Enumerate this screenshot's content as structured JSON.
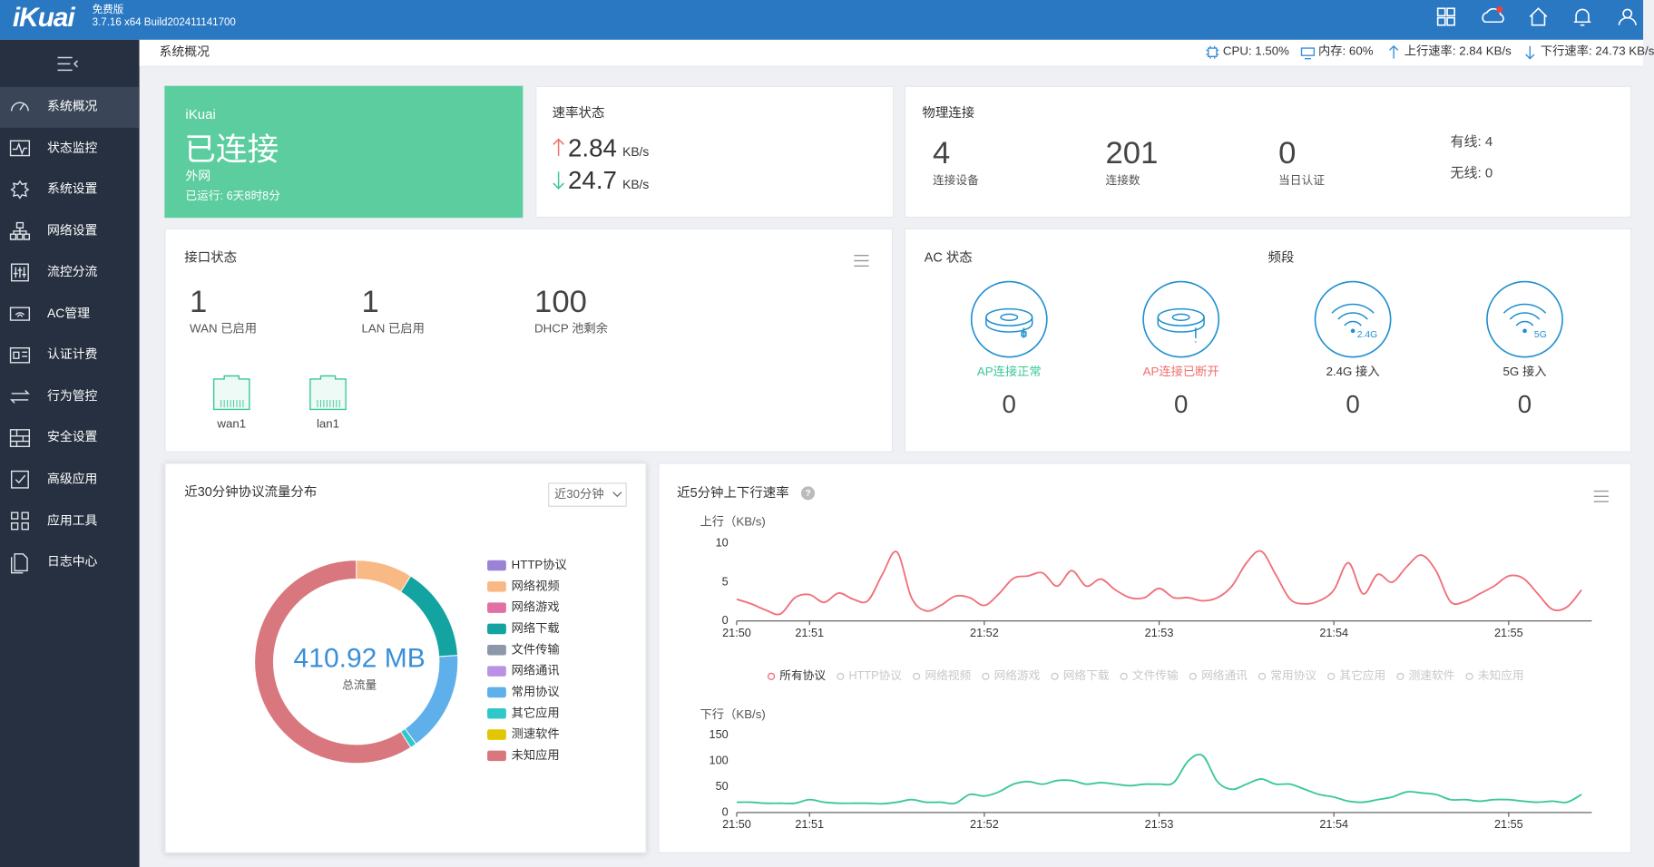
{
  "header": {
    "logo": "iKuai",
    "edition": "免费版",
    "build": "3.7.16 x64 Build202411141700"
  },
  "sidebar": {
    "items": [
      "系统概况",
      "状态监控",
      "系统设置",
      "网络设置",
      "流控分流",
      "AC管理",
      "认证计费",
      "行为管控",
      "安全设置",
      "高级应用",
      "应用工具",
      "日志中心"
    ]
  },
  "breadcrumb": "系统概况",
  "status": {
    "cpu": "CPU: 1.50%",
    "memory": "内存: 60%",
    "upload": "上行速率: 2.84 KB/s",
    "download": "下行速率: 24.73 KB/s"
  },
  "connection": {
    "brand": "iKuai",
    "state": "已连接",
    "network": "外网",
    "uptime": "已运行: 6天8时8分"
  },
  "rate": {
    "title": "速率状态",
    "up": "2.84",
    "down": "24.7",
    "unit": "KB/s"
  },
  "physical": {
    "title": "物理连接",
    "stats": [
      {
        "value": 4,
        "label": "连接设备"
      },
      {
        "value": 201,
        "label": "连接数"
      },
      {
        "value": 0,
        "label": "当日认证"
      }
    ],
    "wired": "有线: 4",
    "wireless": "无线: 0"
  },
  "interface": {
    "title": "接口状态",
    "stats": [
      {
        "value": 1,
        "label": "WAN 已启用"
      },
      {
        "value": 1,
        "label": "LAN 已启用"
      },
      {
        "value": 100,
        "label": "DHCP 池剩余"
      }
    ],
    "ports": [
      "wan1",
      "lan1"
    ]
  },
  "ac": {
    "title": "AC 状态",
    "band_title": "频段",
    "items": [
      {
        "label": "AP连接正常",
        "value": 0
      },
      {
        "label": "AP连接已断开",
        "value": 0
      },
      {
        "label": "2.4G 接入",
        "value": 0,
        "badge": "2.4G"
      },
      {
        "label": "5G 接入",
        "value": 0,
        "badge": "5G"
      }
    ]
  },
  "protocol_chart": {
    "type": "pie",
    "title": "近30分钟协议流量分布",
    "range_option": "近30分钟",
    "center_value": "410.92 MB",
    "center_label": "总流量",
    "series": [
      {
        "name": "HTTP协议",
        "color": "#9a82d6",
        "value": 0
      },
      {
        "name": "网络视频",
        "color": "#f9b985",
        "value": 9
      },
      {
        "name": "网络游戏",
        "color": "#e26fa3",
        "value": 0
      },
      {
        "name": "网络下载",
        "color": "#13a3a0",
        "value": 15
      },
      {
        "name": "文件传输",
        "color": "#8d97a8",
        "value": 0
      },
      {
        "name": "网络通讯",
        "color": "#b993e3",
        "value": 0
      },
      {
        "name": "常用协议",
        "color": "#5fb0ea",
        "value": 16
      },
      {
        "name": "其它应用",
        "color": "#2fc8c9",
        "value": 1
      },
      {
        "name": "测速软件",
        "color": "#e2c600",
        "value": 0
      },
      {
        "name": "未知应用",
        "color": "#d9777e",
        "value": 59
      }
    ]
  },
  "rate_chart": {
    "type": "line",
    "title": "近5分钟上下行速率",
    "categories": [
      "21:50",
      null,
      null,
      null,
      null,
      "21:51",
      null,
      null,
      null,
      null,
      null,
      null,
      null,
      null,
      null,
      null,
      null,
      "21:52",
      null,
      null,
      null,
      null,
      null,
      null,
      null,
      null,
      null,
      null,
      null,
      "21:53",
      null,
      null,
      null,
      null,
      null,
      null,
      null,
      null,
      null,
      null,
      null,
      "21:54",
      null,
      null,
      null,
      null,
      null,
      null,
      null,
      null,
      null,
      null,
      null,
      "21:55",
      null,
      null,
      null,
      null,
      null
    ],
    "legend": [
      "所有协议",
      "HTTP协议",
      "网络视频",
      "网络游戏",
      "网络下载",
      "文件传输",
      "网络通讯",
      "常用协议",
      "其它应用",
      "测速软件",
      "未知应用"
    ],
    "panels": [
      {
        "label": "上行（KB/s)",
        "ylim": [
          0,
          10
        ],
        "yticks": [
          0,
          5,
          10
        ],
        "color": "#f0707a",
        "values": [
          2.8,
          2.2,
          1.4,
          0.9,
          3.0,
          3.4,
          2.4,
          3.6,
          2.8,
          2.6,
          6.0,
          8.9,
          3.0,
          1.3,
          2.0,
          3.2,
          3.0,
          2.0,
          3.5,
          5.5,
          5.8,
          6.2,
          4.5,
          6.5,
          4.5,
          5.4,
          4.0,
          3.0,
          3.0,
          4.2,
          3.0,
          3.0,
          2.6,
          3.0,
          4.5,
          7.5,
          9.0,
          6.0,
          2.8,
          2.2,
          2.6,
          4.0,
          7.5,
          3.5,
          6.0,
          5.0,
          7.0,
          8.5,
          6.5,
          2.5,
          2.5,
          3.5,
          4.5,
          5.8,
          5.5,
          3.5,
          1.5,
          1.8,
          4.0
        ]
      },
      {
        "label": "下行（KB/s)",
        "ylim": [
          0,
          150
        ],
        "yticks": [
          0,
          50,
          100,
          150
        ],
        "color": "#3cc79a",
        "values": [
          20,
          20,
          18,
          18,
          18,
          25,
          20,
          18,
          18,
          18,
          17,
          20,
          25,
          20,
          20,
          18,
          35,
          32,
          40,
          55,
          60,
          55,
          62,
          62,
          55,
          58,
          55,
          52,
          55,
          55,
          58,
          100,
          110,
          60,
          45,
          55,
          65,
          55,
          55,
          45,
          35,
          30,
          22,
          20,
          25,
          30,
          40,
          38,
          35,
          25,
          25,
          22,
          25,
          25,
          22,
          20,
          22,
          20,
          35
        ]
      }
    ]
  }
}
